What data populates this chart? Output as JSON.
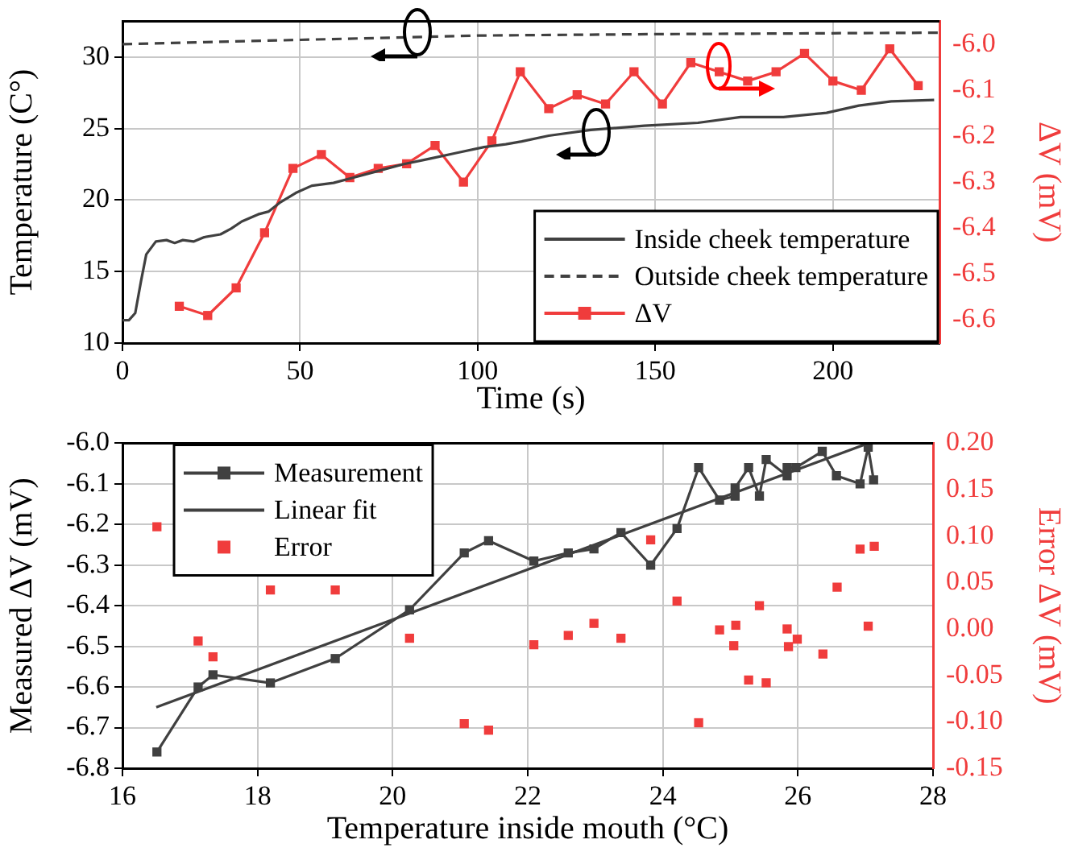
{
  "chart_data": [
    {
      "type": "line",
      "xlabel": "Time (s)",
      "ylabel": "Temperature (C°)",
      "y2label": "ΔV (mV)",
      "xlim": [
        0,
        230
      ],
      "xticks": [
        0,
        50,
        100,
        150,
        200
      ],
      "ylim": [
        10,
        32.5
      ],
      "yticks": [
        10,
        15,
        20,
        25,
        30
      ],
      "y2lim": [
        -6.65,
        -5.95
      ],
      "y2ticks": [
        -6.6,
        -6.5,
        -6.4,
        -6.3,
        -6.2,
        -6.1,
        {
          "value": -6,
          "label": "-6.0"
        }
      ],
      "grid": true,
      "legend": "bottom right",
      "series": [
        {
          "name": "Inside cheek temperature",
          "type": "line",
          "color": "#404040",
          "line_style": "solid",
          "marker": "none",
          "x": [
            0,
            1.8,
            3.6,
            5.2,
            6.7,
            9.4,
            12.4,
            14.7,
            17,
            20,
            23,
            27.6,
            30.6,
            33.6,
            38.2,
            41.2,
            44.2,
            48.8,
            53.3,
            59.4,
            65.5,
            71.5,
            79,
            86.7,
            94.2,
            101.8,
            107.9,
            112.4,
            120,
            131.8,
            146.9,
            162,
            174,
            186.1,
            198.2,
            207.3,
            216.4,
            228.5
          ],
          "values": [
            11.6,
            11.6,
            12.1,
            14.3,
            16.2,
            17.1,
            17.2,
            17.0,
            17.2,
            17.1,
            17.4,
            17.6,
            18.0,
            18.5,
            19.0,
            19.2,
            19.8,
            20.5,
            21.0,
            21.2,
            21.6,
            22.0,
            22.5,
            22.9,
            23.3,
            23.7,
            23.9,
            24.1,
            24.5,
            24.9,
            25.2,
            25.4,
            25.8,
            25.8,
            26.1,
            26.6,
            26.9,
            27.0
          ]
        },
        {
          "name": "Outside cheek temperature",
          "type": "line",
          "color": "#404040",
          "line_style": "dashed",
          "marker": "none",
          "x": [
            0,
            50,
            100,
            150,
            230
          ],
          "values": [
            30.9,
            31.2,
            31.5,
            31.6,
            31.7
          ]
        },
        {
          "name": "ΔV",
          "type": "line",
          "axis": "y2",
          "color": "#f03c3c",
          "line_style": "solid",
          "marker": "square",
          "x": [
            16,
            24,
            32,
            40,
            48,
            56,
            64,
            72,
            80,
            88,
            96,
            104,
            112,
            120,
            128,
            136,
            144,
            152,
            160,
            168,
            176,
            184,
            192,
            200,
            208,
            216,
            224
          ],
          "values": [
            -6.57,
            -6.59,
            -6.53,
            -6.41,
            -6.27,
            -6.24,
            -6.29,
            -6.27,
            -6.26,
            -6.22,
            -6.3,
            -6.21,
            -6.06,
            -6.14,
            -6.11,
            -6.13,
            -6.06,
            -6.13,
            -6.04,
            -6.06,
            -6.08,
            -6.06,
            -6.02,
            -6.08,
            -6.1,
            -6.01,
            -6.09
          ]
        }
      ]
    },
    {
      "type": "line",
      "xlabel": "Temperature inside mouth (°C)",
      "ylabel": "Measured ΔV (mV)",
      "y2label": "Error ΔV (mV)",
      "xlim": [
        16,
        28
      ],
      "xticks": [
        16,
        18,
        20,
        22,
        24,
        26,
        28
      ],
      "ylim": [
        -6.8,
        -6.0
      ],
      "yticks": [
        -6.8,
        -6.7,
        -6.6,
        -6.5,
        -6.4,
        -6.3,
        -6.2,
        -6.1,
        {
          "value": -6,
          "label": "-6.0"
        }
      ],
      "y2lim": [
        -0.15,
        0.2
      ],
      "y2ticks": [
        -0.15,
        {
          "value": -0.1,
          "label": "-0.10"
        },
        -0.05,
        {
          "value": 0,
          "label": "0.00"
        },
        0.05,
        {
          "value": 0.1,
          "label": "0.10"
        },
        0.15,
        {
          "value": 0.2,
          "label": "0.20"
        }
      ],
      "grid": true,
      "legend": "top left",
      "series": [
        {
          "name": "Measurement",
          "type": "line",
          "color": "#404040",
          "line_style": "solid",
          "marker": "square",
          "x": [
            16.51,
            17.12,
            17.34,
            18.19,
            19.15,
            20.25,
            21.06,
            21.42,
            22.09,
            22.6,
            22.98,
            23.38,
            23.82,
            24.21,
            24.53,
            24.84,
            25.07,
            25.07,
            25.27,
            25.43,
            25.53,
            25.84,
            25.84,
            25.97,
            26.36,
            26.57,
            26.92,
            27.04,
            27.12
          ],
          "values": [
            -6.76,
            -6.6,
            -6.57,
            -6.59,
            -6.53,
            -6.41,
            -6.27,
            -6.24,
            -6.29,
            -6.27,
            -6.26,
            -6.22,
            -6.3,
            -6.21,
            -6.06,
            -6.14,
            -6.13,
            -6.11,
            -6.06,
            -6.13,
            -6.04,
            -6.08,
            -6.06,
            -6.06,
            -6.02,
            -6.08,
            -6.1,
            -6.01,
            -6.09
          ]
        },
        {
          "name": "Linear fit",
          "type": "line",
          "color": "#404040",
          "line_style": "solid",
          "marker": "none",
          "x": [
            16.5,
            27.04
          ],
          "values": [
            -6.65,
            -6.0
          ]
        },
        {
          "name": "Error",
          "type": "scatter",
          "axis": "y2",
          "color": "#f03c3c",
          "marker": "square",
          "x": [
            16.51,
            17.12,
            17.34,
            18.19,
            19.15,
            20.25,
            21.06,
            21.42,
            22.09,
            22.6,
            22.98,
            23.38,
            23.82,
            24.21,
            24.53,
            24.84,
            25.08,
            25.05,
            25.27,
            25.43,
            25.53,
            25.84,
            25.86,
            25.99,
            26.37,
            26.58,
            26.92,
            27.04,
            27.13
          ],
          "values": [
            0.11,
            -0.013,
            -0.03,
            0.042,
            0.042,
            -0.01,
            -0.102,
            -0.109,
            -0.017,
            -0.007,
            0.006,
            -0.01,
            0.096,
            0.03,
            -0.101,
            -0.001,
            0.004,
            -0.018,
            -0.055,
            0.025,
            -0.058,
            0.0,
            -0.019,
            -0.011,
            -0.027,
            0.045,
            0.086,
            0.003,
            0.089
          ]
        }
      ]
    }
  ]
}
